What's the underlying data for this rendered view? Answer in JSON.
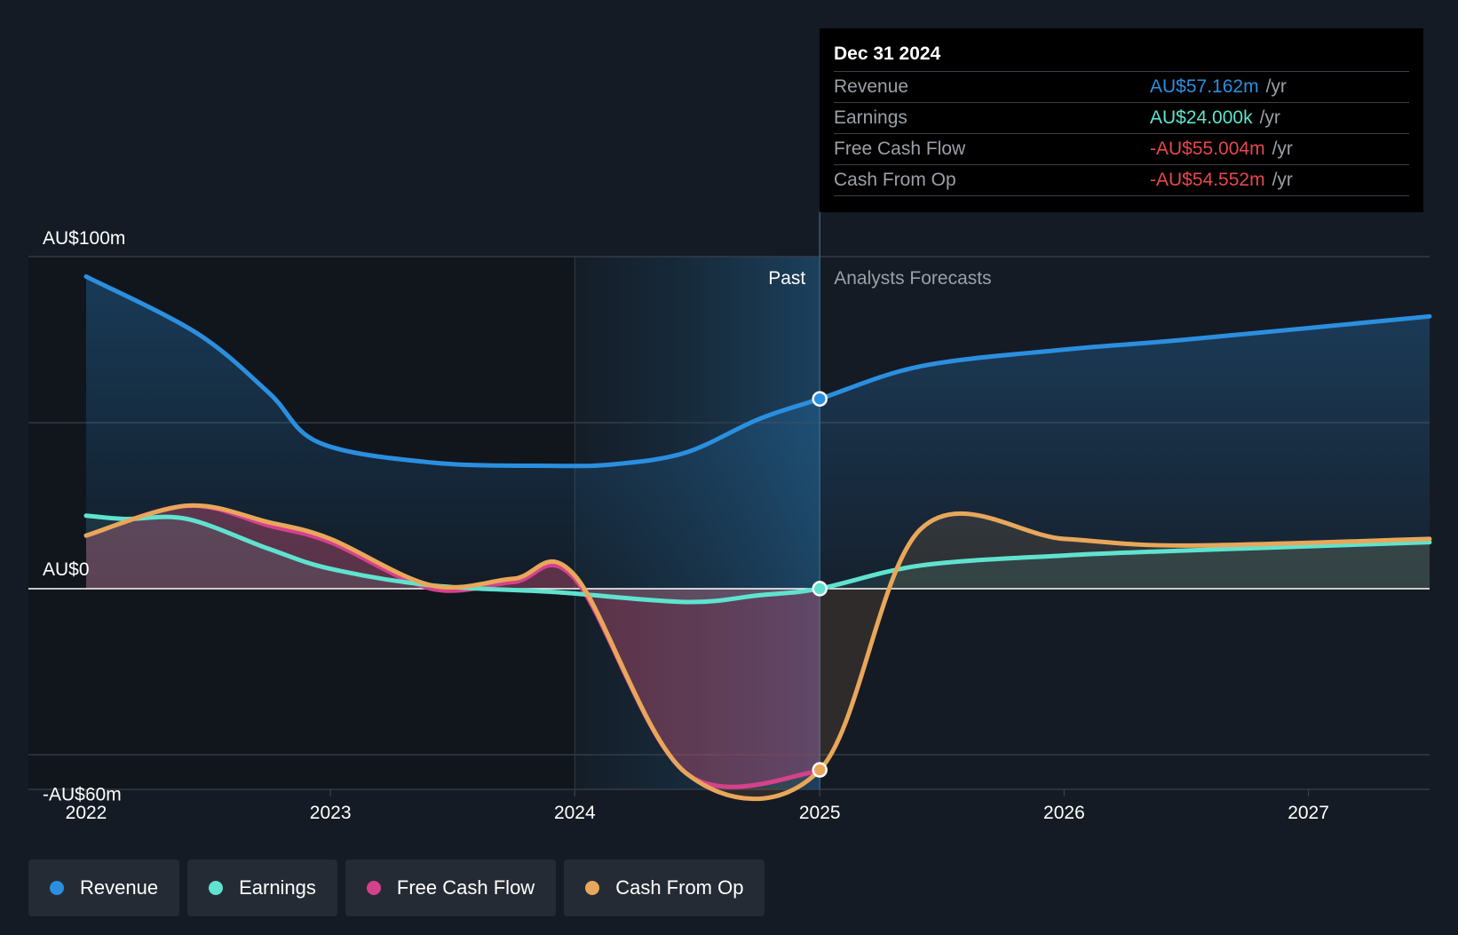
{
  "chart_data": {
    "type": "line",
    "title": "",
    "x_domain": [
      "2022-01-01",
      "2027-07-01"
    ],
    "ylim": [
      -60,
      100
    ],
    "y_axis_labels": [
      {
        "value": 100,
        "label": "AU$100m"
      },
      {
        "value": 0,
        "label": "AU$0"
      },
      {
        "value": -60,
        "label": "-AU$60m"
      }
    ],
    "x_ticks": [
      "2022",
      "2023",
      "2024",
      "2025",
      "2026",
      "2027"
    ],
    "grid": true,
    "divider_date": "2025-01-01",
    "past_label": "Past",
    "forecast_label": "Analysts Forecasts",
    "series": [
      {
        "name": "Revenue",
        "color": "#2b8fdf",
        "points": [
          [
            "2022-01-01",
            94
          ],
          [
            "2022-06-15",
            77
          ],
          [
            "2022-10-01",
            59
          ],
          [
            "2022-12-15",
            44
          ],
          [
            "2023-06-01",
            38
          ],
          [
            "2023-12-01",
            37
          ],
          [
            "2024-03-01",
            37.5
          ],
          [
            "2024-06-15",
            41
          ],
          [
            "2024-10-01",
            51
          ],
          [
            "2025-01-01",
            57.162
          ],
          [
            "2025-06-01",
            67
          ],
          [
            "2026-01-01",
            72
          ],
          [
            "2026-07-01",
            75
          ],
          [
            "2027-07-01",
            82
          ]
        ]
      },
      {
        "name": "Earnings",
        "color": "#5fe3cf",
        "points": [
          [
            "2022-01-01",
            22
          ],
          [
            "2022-03-01",
            21
          ],
          [
            "2022-06-01",
            21
          ],
          [
            "2022-10-01",
            12
          ],
          [
            "2023-01-01",
            6
          ],
          [
            "2023-06-01",
            1
          ],
          [
            "2023-12-01",
            -1
          ],
          [
            "2024-06-15",
            -4
          ],
          [
            "2024-10-01",
            -2
          ],
          [
            "2025-01-01",
            0.024
          ],
          [
            "2025-06-01",
            7
          ],
          [
            "2026-01-01",
            10
          ],
          [
            "2026-07-01",
            11.5
          ],
          [
            "2027-07-01",
            14
          ]
        ]
      },
      {
        "name": "Free Cash Flow",
        "color": "#d6418c",
        "points": [
          [
            "2022-01-01",
            16
          ],
          [
            "2022-06-01",
            25
          ],
          [
            "2022-10-01",
            19
          ],
          [
            "2023-01-01",
            14
          ],
          [
            "2023-06-01",
            0
          ],
          [
            "2023-10-01",
            2
          ],
          [
            "2024-01-01",
            3
          ],
          [
            "2024-06-15",
            -55.5
          ],
          [
            "2025-01-01",
            -55.004
          ]
        ]
      },
      {
        "name": "Cash From Op",
        "color": "#e8a75a",
        "points": [
          [
            "2022-01-01",
            16
          ],
          [
            "2022-06-01",
            25
          ],
          [
            "2022-10-01",
            20
          ],
          [
            "2023-01-01",
            15
          ],
          [
            "2023-06-01",
            1
          ],
          [
            "2023-10-01",
            3
          ],
          [
            "2024-01-01",
            4
          ],
          [
            "2024-06-15",
            -55.5
          ],
          [
            "2025-01-01",
            -54.552
          ],
          [
            "2025-06-01",
            18
          ],
          [
            "2026-01-01",
            15
          ],
          [
            "2026-07-01",
            13
          ],
          [
            "2027-07-01",
            15
          ]
        ]
      }
    ],
    "tooltip": {
      "date": "Dec 31 2024",
      "rows": [
        {
          "label": "Revenue",
          "value": "AU$57.162m",
          "unit": "/yr",
          "color": "#2b8fdf"
        },
        {
          "label": "Earnings",
          "value": "AU$24.000k",
          "unit": "/yr",
          "color": "#5fe3cf"
        },
        {
          "label": "Free Cash Flow",
          "value": "-AU$55.004m",
          "unit": "/yr",
          "color": "#e5484d"
        },
        {
          "label": "Cash From Op",
          "value": "-AU$54.552m",
          "unit": "/yr",
          "color": "#e5484d"
        }
      ]
    },
    "legend": [
      {
        "label": "Revenue",
        "color": "#2b8fdf"
      },
      {
        "label": "Earnings",
        "color": "#5fe3cf"
      },
      {
        "label": "Free Cash Flow",
        "color": "#d6418c"
      },
      {
        "label": "Cash From Op",
        "color": "#e8a75a"
      }
    ]
  }
}
